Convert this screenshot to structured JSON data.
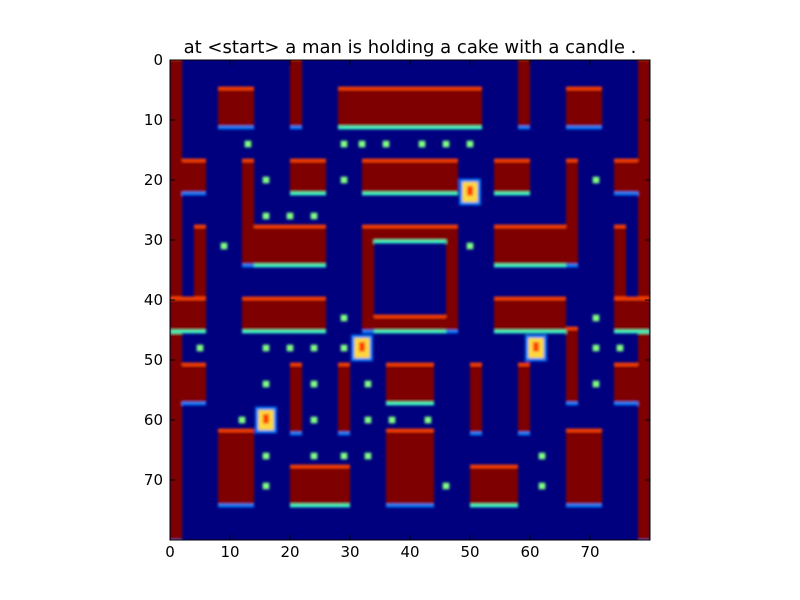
{
  "chart_data": {
    "type": "heatmap",
    "title": "at <start> a man is holding a cake with a candle .",
    "xlabel": "",
    "ylabel": "",
    "xlim": [
      0,
      80
    ],
    "ylim": [
      80,
      0
    ],
    "x_ticks": [
      0,
      10,
      20,
      30,
      40,
      50,
      60,
      70
    ],
    "y_ticks": [
      0,
      10,
      20,
      30,
      40,
      50,
      60,
      70
    ],
    "colormap": "jet",
    "colors": {
      "background": "#00007f",
      "wall": "#7f0000",
      "edge_orange": "#ff4000",
      "edge_yellow": "#f0f000",
      "edge_cyan": "#3cffc0",
      "edge_blue": "#0080ff",
      "dot": "#80ff80",
      "sprite": "#ffd840"
    },
    "regions": [
      {
        "x0": 0,
        "y0": 0,
        "x1": 2,
        "y1": 80,
        "value": 1.0
      },
      {
        "x0": 78,
        "y0": 0,
        "x1": 80,
        "y1": 80,
        "value": 1.0
      },
      {
        "x0": 8,
        "y0": 5,
        "x1": 14,
        "y1": 11,
        "value": 1.0
      },
      {
        "x0": 20,
        "y0": 0,
        "x1": 22,
        "y1": 11,
        "value": 1.0
      },
      {
        "x0": 28,
        "y0": 5,
        "x1": 52,
        "y1": 11,
        "value": 1.0
      },
      {
        "x0": 58,
        "y0": 0,
        "x1": 60,
        "y1": 11,
        "value": 1.0
      },
      {
        "x0": 66,
        "y0": 5,
        "x1": 72,
        "y1": 11,
        "value": 1.0
      },
      {
        "x0": 2,
        "y0": 17,
        "x1": 6,
        "y1": 22,
        "value": 1.0
      },
      {
        "x0": 12,
        "y0": 17,
        "x1": 14,
        "y1": 34,
        "value": 1.0
      },
      {
        "x0": 20,
        "y0": 17,
        "x1": 26,
        "y1": 22,
        "value": 1.0
      },
      {
        "x0": 32,
        "y0": 17,
        "x1": 48,
        "y1": 22,
        "value": 1.0
      },
      {
        "x0": 54,
        "y0": 17,
        "x1": 60,
        "y1": 22,
        "value": 1.0
      },
      {
        "x0": 66,
        "y0": 17,
        "x1": 68,
        "y1": 34,
        "value": 1.0
      },
      {
        "x0": 74,
        "y0": 17,
        "x1": 78,
        "y1": 22,
        "value": 1.0
      },
      {
        "x0": 4,
        "y0": 28,
        "x1": 6,
        "y1": 40,
        "value": 1.0
      },
      {
        "x0": 14,
        "y0": 28,
        "x1": 26,
        "y1": 34,
        "value": 1.0
      },
      {
        "x0": 32,
        "y0": 28,
        "x1": 34,
        "y1": 45,
        "value": 1.0
      },
      {
        "x0": 34,
        "y0": 28,
        "x1": 46,
        "y1": 30,
        "value": 1.0
      },
      {
        "x0": 46,
        "y0": 28,
        "x1": 48,
        "y1": 45,
        "value": 1.0
      },
      {
        "x0": 34,
        "y0": 43,
        "x1": 46,
        "y1": 45,
        "value": 1.0
      },
      {
        "x0": 54,
        "y0": 28,
        "x1": 66,
        "y1": 34,
        "value": 1.0
      },
      {
        "x0": 74,
        "y0": 28,
        "x1": 76,
        "y1": 40,
        "value": 1.0
      },
      {
        "x0": 12,
        "y0": 40,
        "x1": 26,
        "y1": 45,
        "value": 1.0
      },
      {
        "x0": 54,
        "y0": 40,
        "x1": 66,
        "y1": 45,
        "value": 1.0
      },
      {
        "x0": 0,
        "y0": 40,
        "x1": 6,
        "y1": 45,
        "value": 1.0
      },
      {
        "x0": 74,
        "y0": 40,
        "x1": 80,
        "y1": 45,
        "value": 1.0
      },
      {
        "x0": 2,
        "y0": 51,
        "x1": 6,
        "y1": 57,
        "value": 1.0
      },
      {
        "x0": 20,
        "y0": 51,
        "x1": 22,
        "y1": 62,
        "value": 1.0
      },
      {
        "x0": 28,
        "y0": 51,
        "x1": 30,
        "y1": 62,
        "value": 1.0
      },
      {
        "x0": 36,
        "y0": 51,
        "x1": 44,
        "y1": 57,
        "value": 1.0
      },
      {
        "x0": 50,
        "y0": 51,
        "x1": 52,
        "y1": 62,
        "value": 1.0
      },
      {
        "x0": 58,
        "y0": 51,
        "x1": 60,
        "y1": 62,
        "value": 1.0
      },
      {
        "x0": 66,
        "y0": 45,
        "x1": 68,
        "y1": 57,
        "value": 1.0
      },
      {
        "x0": 74,
        "y0": 51,
        "x1": 78,
        "y1": 57,
        "value": 1.0
      },
      {
        "x0": 8,
        "y0": 62,
        "x1": 14,
        "y1": 74,
        "value": 1.0
      },
      {
        "x0": 20,
        "y0": 68,
        "x1": 30,
        "y1": 74,
        "value": 1.0
      },
      {
        "x0": 36,
        "y0": 62,
        "x1": 44,
        "y1": 74,
        "value": 1.0
      },
      {
        "x0": 50,
        "y0": 68,
        "x1": 58,
        "y1": 74,
        "value": 1.0
      },
      {
        "x0": 66,
        "y0": 62,
        "x1": 72,
        "y1": 74,
        "value": 1.0
      }
    ],
    "dots": [
      [
        13,
        14
      ],
      [
        29,
        14
      ],
      [
        32,
        14
      ],
      [
        36,
        14
      ],
      [
        42,
        14
      ],
      [
        46,
        14
      ],
      [
        50,
        14
      ],
      [
        16,
        20
      ],
      [
        29,
        20
      ],
      [
        71,
        20
      ],
      [
        16,
        26
      ],
      [
        20,
        26
      ],
      [
        24,
        26
      ],
      [
        9,
        31
      ],
      [
        50,
        31
      ],
      [
        29,
        43
      ],
      [
        71,
        43
      ],
      [
        5,
        48
      ],
      [
        16,
        48
      ],
      [
        20,
        48
      ],
      [
        24,
        48
      ],
      [
        29,
        48
      ],
      [
        71,
        48
      ],
      [
        75,
        48
      ],
      [
        16,
        54
      ],
      [
        24,
        54
      ],
      [
        33,
        54
      ],
      [
        71,
        54
      ],
      [
        12,
        60
      ],
      [
        24,
        60
      ],
      [
        33,
        60
      ],
      [
        37,
        60
      ],
      [
        43,
        60
      ],
      [
        16,
        66
      ],
      [
        24,
        66
      ],
      [
        29,
        66
      ],
      [
        33,
        66
      ],
      [
        62,
        66
      ],
      [
        16,
        71
      ],
      [
        46,
        71
      ],
      [
        62,
        71
      ]
    ],
    "sprites": [
      [
        50,
        22
      ],
      [
        32,
        48
      ],
      [
        61,
        48
      ],
      [
        16,
        60
      ]
    ]
  }
}
